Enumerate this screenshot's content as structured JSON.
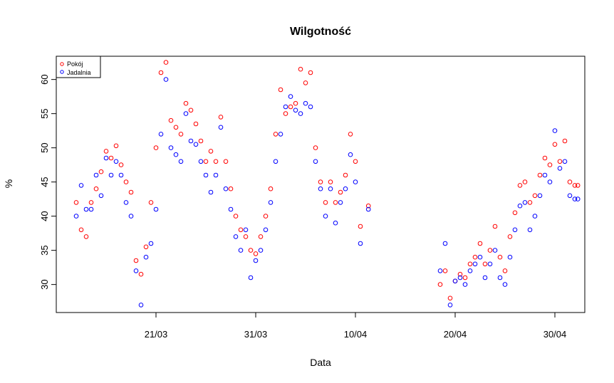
{
  "chart_data": {
    "type": "scatter",
    "title": "Wilgotność",
    "xlabel": "Data",
    "ylabel": "%",
    "xlim": [
      0,
      53
    ],
    "ylim": [
      25.9,
      63.4
    ],
    "x_ticks": [
      {
        "label": "21/03",
        "x": 10
      },
      {
        "label": "31/03",
        "x": 20
      },
      {
        "label": "10/04",
        "x": 30
      },
      {
        "label": "20/04",
        "x": 40
      },
      {
        "label": "30/04",
        "x": 50
      }
    ],
    "y_ticks": [
      30,
      35,
      40,
      45,
      50,
      55,
      60
    ],
    "legend": {
      "position": "top-left",
      "entries": [
        {
          "name": "Pokój",
          "color": "#ff0000"
        },
        {
          "name": "Jadalnia",
          "color": "#0000ff"
        }
      ]
    },
    "series": [
      {
        "name": "Pokój",
        "color": "#ff0000",
        "x": [
          2.0,
          2.5,
          3.0,
          3.5,
          4.0,
          4.5,
          5.0,
          5.5,
          6.0,
          6.5,
          7.0,
          7.5,
          8.0,
          8.5,
          9.0,
          9.5,
          10.0,
          10.5,
          11.0,
          11.5,
          12.0,
          12.5,
          13.0,
          13.5,
          14.0,
          14.5,
          15.0,
          15.5,
          16.0,
          16.5,
          17.0,
          17.5,
          18.0,
          18.5,
          19.0,
          19.5,
          20.0,
          20.5,
          21.0,
          21.5,
          22.0,
          22.5,
          23.0,
          23.5,
          24.0,
          24.5,
          25.0,
          25.5,
          26.0,
          26.5,
          27.0,
          27.5,
          28.0,
          28.5,
          29.0,
          29.5,
          30.0,
          30.5,
          31.3,
          38.5,
          39.0,
          39.5,
          40.0,
          40.5,
          41.0,
          41.5,
          42.0,
          42.5,
          43.0,
          43.5,
          44.0,
          44.5,
          45.0,
          45.5,
          46.0,
          46.5,
          47.0,
          47.5,
          48.0,
          48.5,
          49.0,
          49.5,
          50.0,
          50.5,
          51.0,
          51.5,
          52.0,
          52.3
        ],
        "y": [
          42.0,
          38.0,
          37.0,
          42.0,
          44.0,
          46.5,
          49.5,
          48.5,
          50.3,
          47.5,
          45.0,
          43.5,
          33.5,
          31.5,
          35.5,
          42.0,
          50.0,
          61.0,
          62.5,
          54.0,
          53.0,
          52.0,
          56.5,
          55.5,
          53.5,
          51.0,
          48.0,
          49.5,
          48.0,
          54.5,
          48.0,
          44.0,
          40.0,
          38.0,
          37.0,
          35.0,
          34.5,
          37.0,
          40.0,
          44.0,
          52.0,
          58.5,
          55.0,
          56.0,
          56.5,
          61.5,
          59.5,
          61.0,
          50.0,
          45.0,
          42.0,
          45.0,
          42.0,
          43.5,
          46.0,
          52.0,
          48.0,
          38.5,
          41.5,
          30.0,
          32.0,
          28.0,
          30.5,
          31.5,
          31.0,
          33.0,
          34.0,
          36.0,
          33.0,
          35.0,
          38.5,
          34.0,
          32.0,
          37.0,
          40.5,
          44.5,
          45.0,
          42.0,
          43.0,
          46.0,
          48.5,
          47.5,
          50.5,
          48.0,
          51.0,
          45.0,
          44.5,
          44.5
        ]
      },
      {
        "name": "Jadalnia",
        "color": "#0000ff",
        "x": [
          2.0,
          2.5,
          3.0,
          3.5,
          4.0,
          4.5,
          5.0,
          5.5,
          6.0,
          6.5,
          7.0,
          7.5,
          8.0,
          8.5,
          9.0,
          9.5,
          10.0,
          10.5,
          11.0,
          11.5,
          12.0,
          12.5,
          13.0,
          13.5,
          14.0,
          14.5,
          15.0,
          15.5,
          16.0,
          16.5,
          17.0,
          17.5,
          18.0,
          18.5,
          19.0,
          19.5,
          20.0,
          20.5,
          21.0,
          21.5,
          22.0,
          22.5,
          23.0,
          23.5,
          24.0,
          24.5,
          25.0,
          25.5,
          26.0,
          26.5,
          27.0,
          27.5,
          28.0,
          28.5,
          29.0,
          29.5,
          30.0,
          30.5,
          31.3,
          38.5,
          39.0,
          39.5,
          40.0,
          40.5,
          41.0,
          41.5,
          42.0,
          42.5,
          43.0,
          43.5,
          44.0,
          44.5,
          45.0,
          45.5,
          46.0,
          46.5,
          47.0,
          47.5,
          48.0,
          48.5,
          49.0,
          49.5,
          50.0,
          50.5,
          51.0,
          51.5,
          52.0,
          52.3
        ],
        "y": [
          40.0,
          44.5,
          41.0,
          41.0,
          46.0,
          43.0,
          48.5,
          46.0,
          48.0,
          46.0,
          42.0,
          40.0,
          32.0,
          27.0,
          34.0,
          36.0,
          41.0,
          52.0,
          60.0,
          50.0,
          49.0,
          48.0,
          55.0,
          51.0,
          50.5,
          48.0,
          46.0,
          43.5,
          46.0,
          53.0,
          44.0,
          41.0,
          37.0,
          35.0,
          38.0,
          31.0,
          33.5,
          35.0,
          38.0,
          42.0,
          48.0,
          52.0,
          56.0,
          57.5,
          55.5,
          55.0,
          56.5,
          56.0,
          48.0,
          44.0,
          40.0,
          44.0,
          39.0,
          42.0,
          44.0,
          49.0,
          45.0,
          36.0,
          41.0,
          32.0,
          36.0,
          27.0,
          30.5,
          31.0,
          30.0,
          32.0,
          33.0,
          34.0,
          31.0,
          33.0,
          35.0,
          31.0,
          30.0,
          34.0,
          38.0,
          41.5,
          42.0,
          38.0,
          40.0,
          43.0,
          46.0,
          45.0,
          52.5,
          47.0,
          48.0,
          43.0,
          42.5,
          42.5
        ]
      }
    ]
  }
}
